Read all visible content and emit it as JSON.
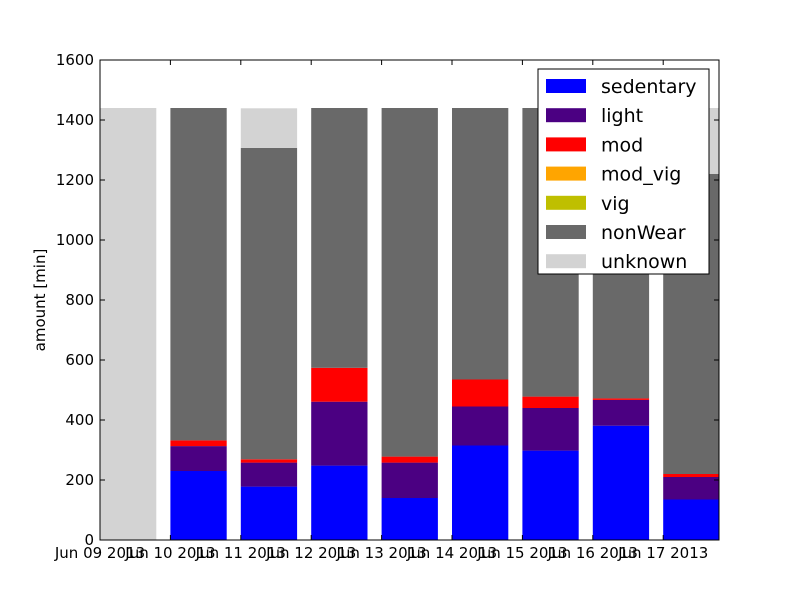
{
  "chart_data": {
    "type": "bar",
    "stacked": true,
    "title": "",
    "xlabel": "",
    "ylabel": "amount [min]",
    "ylim": [
      0,
      1600
    ],
    "yticks": [
      0,
      200,
      400,
      600,
      800,
      1000,
      1200,
      1400,
      1600
    ],
    "grid": false,
    "legend_position": "top-right",
    "categories": [
      "Jun 09 2013",
      "Jun 10 2013",
      "Jun 11 2013",
      "Jun 12 2013",
      "Jun 13 2013",
      "Jun 14 2013",
      "Jun 15 2013",
      "Jun 16 2013",
      "Jun 17 2013"
    ],
    "series": [
      {
        "name": "sedentary",
        "color": "#0000ff",
        "values": [
          0,
          230,
          178,
          248,
          140,
          315,
          298,
          381,
          135
        ]
      },
      {
        "name": "light",
        "color": "#4b0082",
        "values": [
          0,
          83,
          80,
          213,
          118,
          130,
          142,
          86,
          75
        ]
      },
      {
        "name": "mod",
        "color": "#ff0000",
        "values": [
          0,
          19,
          11,
          113,
          20,
          90,
          38,
          5,
          10
        ]
      },
      {
        "name": "mod_vig",
        "color": "#ffa500",
        "values": [
          0,
          0,
          0,
          0,
          0,
          0,
          0,
          0,
          0
        ]
      },
      {
        "name": "vig",
        "color": "#bfbf00",
        "values": [
          0,
          0,
          0,
          0,
          0,
          0,
          0,
          0,
          0
        ]
      },
      {
        "name": "nonWear",
        "color": "#696969",
        "values": [
          0,
          1108,
          1038,
          866,
          1162,
          905,
          962,
          968,
          1000
        ]
      },
      {
        "name": "unknown",
        "color": "#d3d3d3",
        "values": [
          1440,
          0,
          132,
          0,
          0,
          0,
          0,
          0,
          220
        ]
      }
    ]
  }
}
